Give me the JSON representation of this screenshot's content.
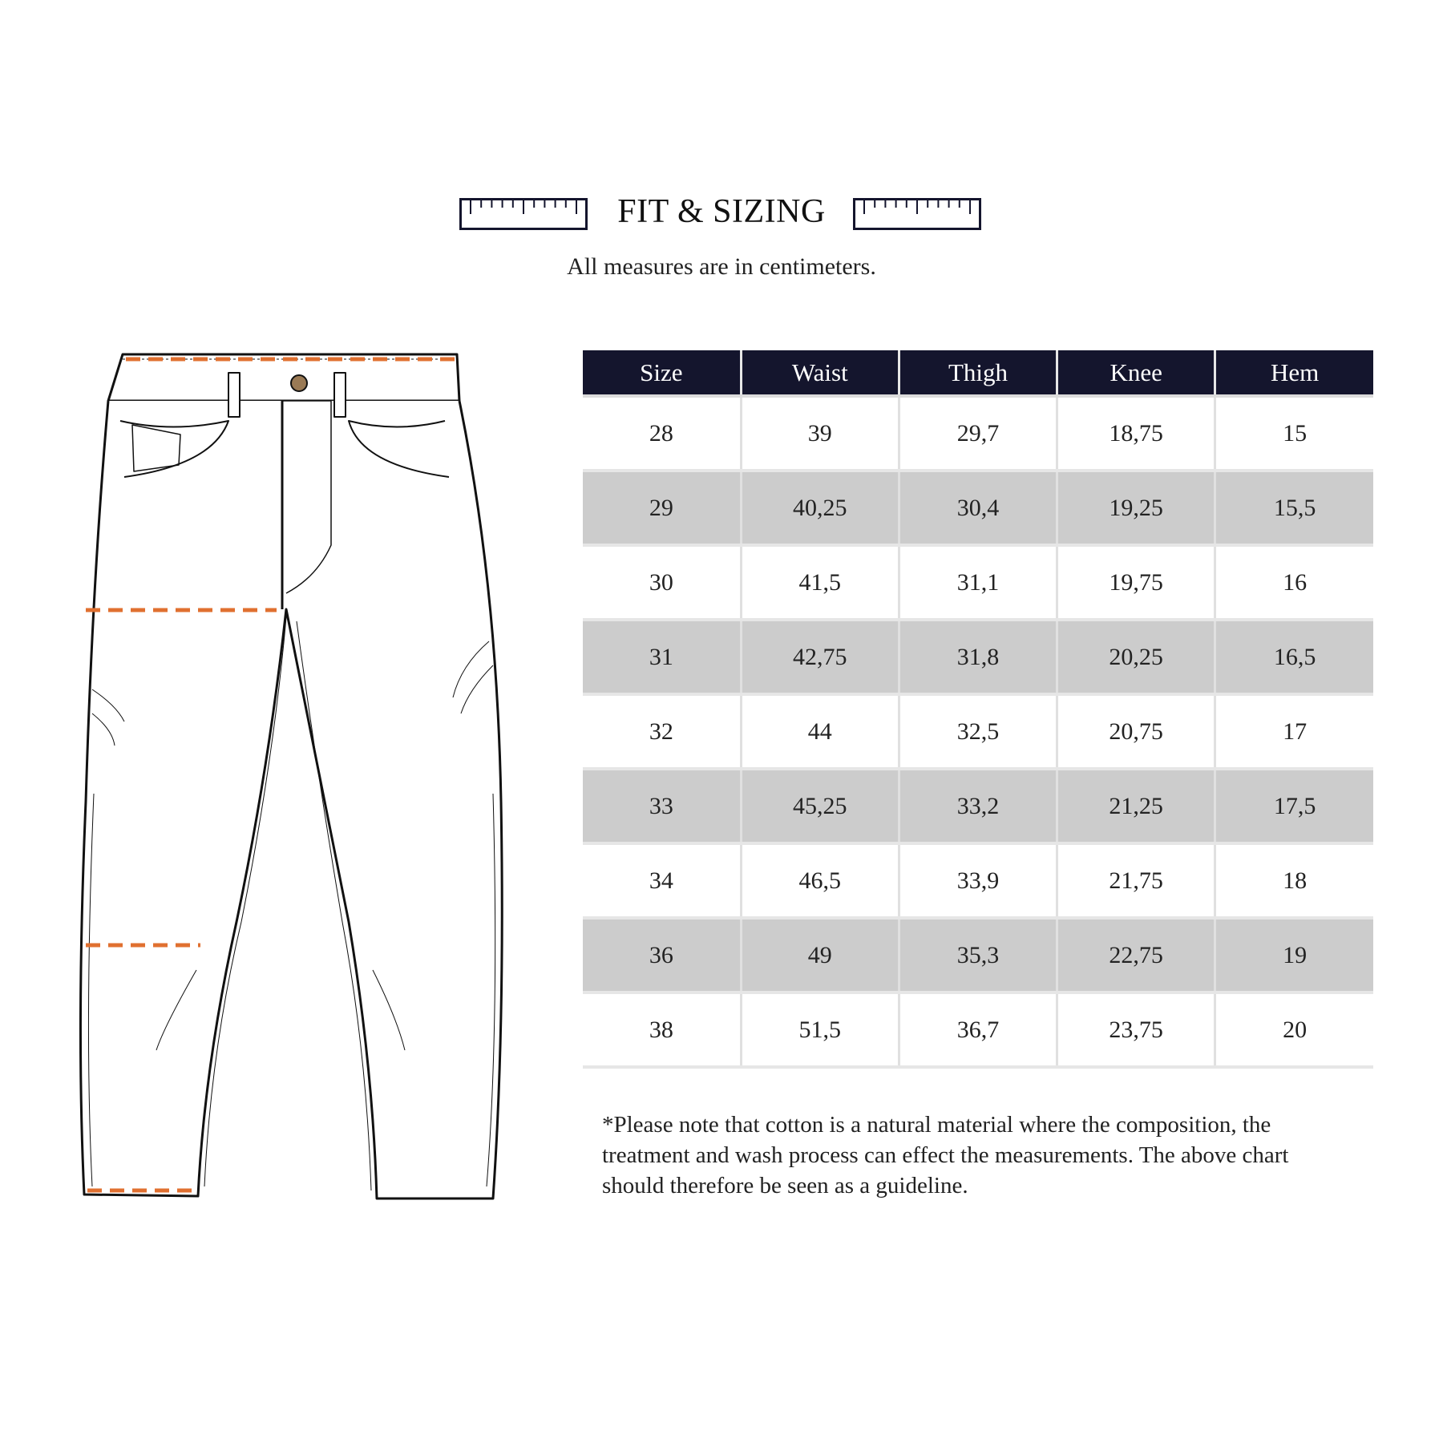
{
  "header": {
    "title": "FIT & SIZING",
    "subtitle": "All measures are in centimeters.",
    "icons": [
      "ruler-icon",
      "ruler-icon"
    ]
  },
  "illustration": {
    "subject": "jeans-technical-drawing",
    "measure_line_color": "#e07030"
  },
  "colors": {
    "header_bg": "#14152d",
    "alt_row_bg": "#cccccc"
  },
  "table": {
    "columns": [
      "Size",
      "Waist",
      "Thigh",
      "Knee",
      "Hem"
    ],
    "rows": [
      [
        "28",
        "39",
        "29,7",
        "18,75",
        "15"
      ],
      [
        "29",
        "40,25",
        "30,4",
        "19,25",
        "15,5"
      ],
      [
        "30",
        "41,5",
        "31,1",
        "19,75",
        "16"
      ],
      [
        "31",
        "42,75",
        "31,8",
        "20,25",
        "16,5"
      ],
      [
        "32",
        "44",
        "32,5",
        "20,75",
        "17"
      ],
      [
        "33",
        "45,25",
        "33,2",
        "21,25",
        "17,5"
      ],
      [
        "34",
        "46,5",
        "33,9",
        "21,75",
        "18"
      ],
      [
        "36",
        "49",
        "35,3",
        "22,75",
        "19"
      ],
      [
        "38",
        "51,5",
        "36,7",
        "23,75",
        "20"
      ]
    ]
  },
  "note": {
    "lines": [
      "*Please note that cotton is a natural material where the composition, the",
      "treatment and wash process can effect the measurements. The above chart",
      "should therefore be seen as a guideline."
    ]
  }
}
